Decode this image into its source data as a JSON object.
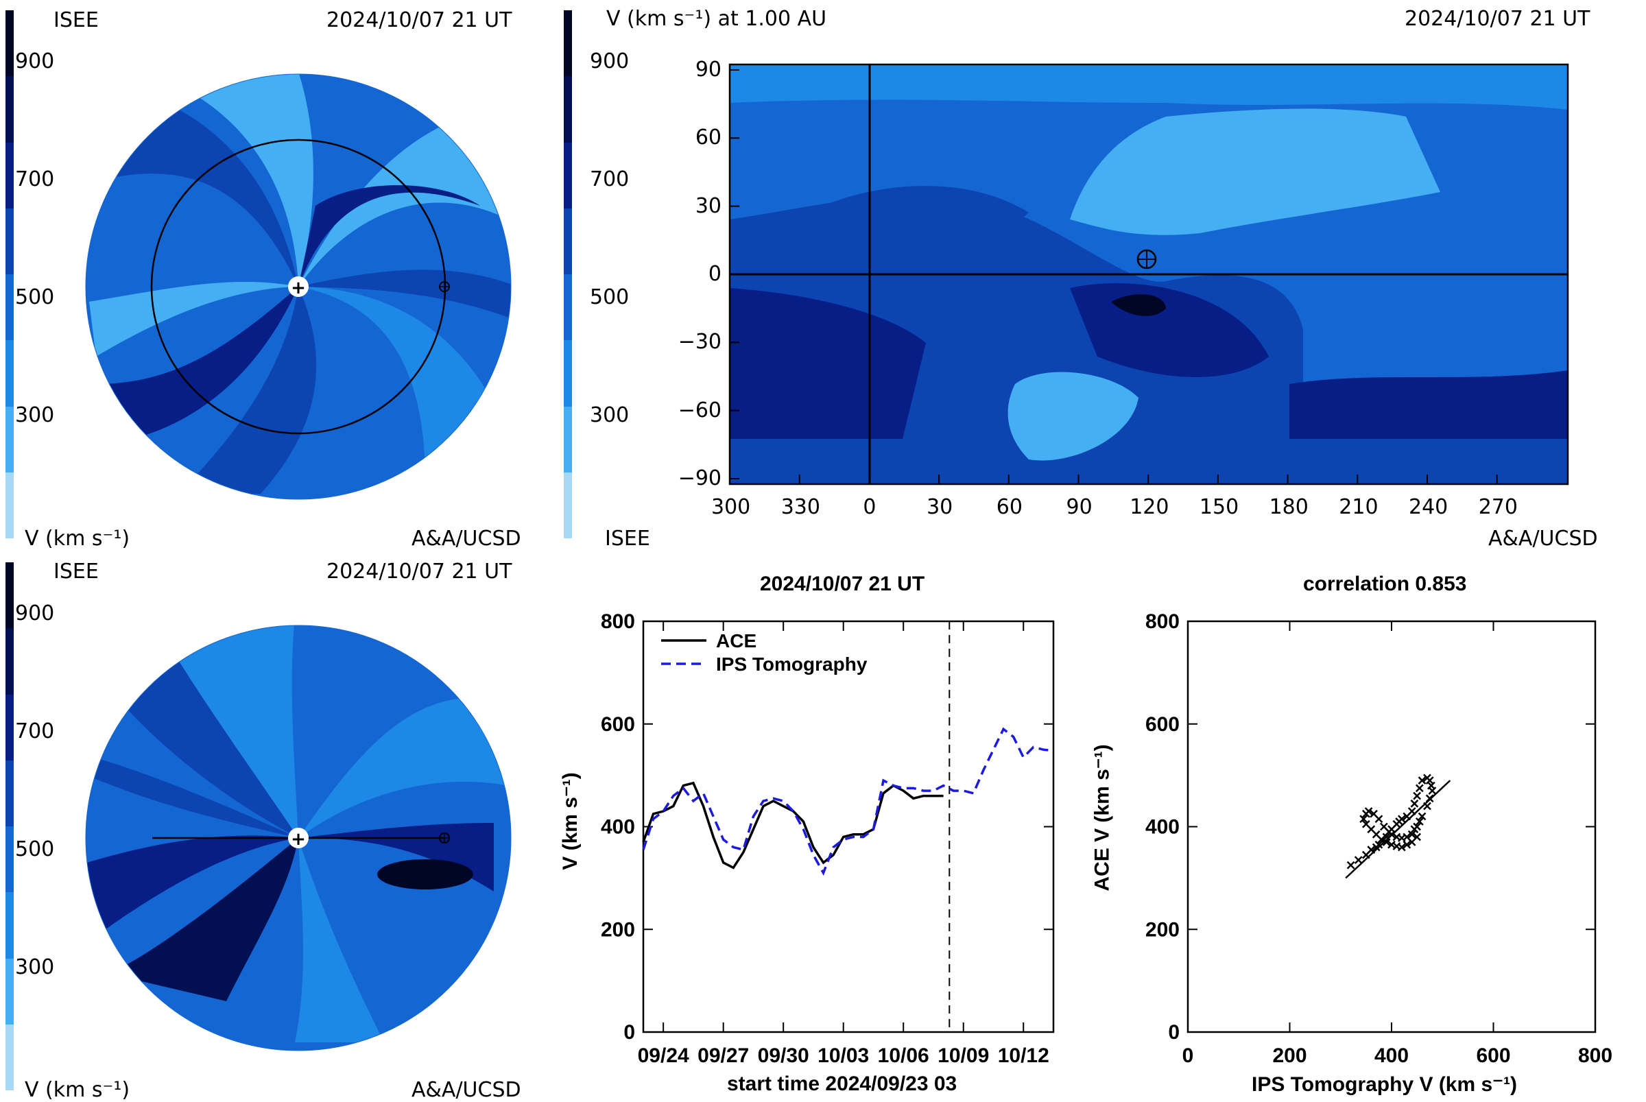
{
  "colorbar": {
    "ticks": [
      "900",
      "700",
      "500",
      "300"
    ],
    "bands": [
      "#a8d8f4",
      "#44aff2",
      "#1e88e6",
      "#1466d2",
      "#0c44b2",
      "#061e86",
      "#020f52",
      "#010626"
    ]
  },
  "panel_top_left": {
    "org": "ISEE",
    "time": "2024/10/07 21 UT",
    "units": "V (km s⁻¹)",
    "credit": "A&A/UCSD"
  },
  "panel_bottom_left": {
    "org": "ISEE",
    "time": "2024/10/07 21 UT",
    "units": "V (km s⁻¹)",
    "credit": "A&A/UCSD"
  },
  "panel_map": {
    "header": "V (km s⁻¹) at 1.00 AU",
    "time": "2024/10/07 21 UT",
    "org": "ISEE",
    "credit": "A&A/UCSD",
    "y_ticks": [
      "90",
      "60",
      "30",
      "0",
      "−30",
      "−60",
      "−90"
    ],
    "x_ticks": [
      "300",
      "330",
      "0",
      "30",
      "60",
      "90",
      "120",
      "150",
      "180",
      "210",
      "240",
      "270"
    ],
    "earth_symbol": "⊕"
  },
  "chart_data": [
    {
      "type": "line",
      "title": "2024/10/07 21 UT",
      "xlabel": "start time 2024/09/23 03",
      "ylabel": "V (km s⁻¹)",
      "x_tick_labels": [
        "09/24",
        "09/27",
        "09/30",
        "10/03",
        "10/06",
        "10/09",
        "10/12"
      ],
      "y_ticks": [
        "800",
        "600",
        "400",
        "200",
        "0"
      ],
      "ylim": [
        0,
        800
      ],
      "xlim": [
        0,
        20.5
      ],
      "vline_x": 15.3,
      "legend_position": "top-left",
      "series": [
        {
          "name": "ACE",
          "color": "#000000",
          "style": "solid",
          "x": [
            0,
            0.5,
            1,
            1.5,
            2,
            2.5,
            3,
            3.5,
            4,
            4.5,
            5,
            5.5,
            6,
            6.5,
            7,
            7.5,
            8,
            8.5,
            9,
            9.5,
            10,
            10.5,
            11,
            11.5,
            12,
            12.5,
            13,
            13.5,
            14,
            14.5,
            15
          ],
          "y": [
            370,
            425,
            430,
            440,
            480,
            485,
            440,
            380,
            330,
            320,
            350,
            395,
            440,
            450,
            440,
            430,
            410,
            360,
            330,
            345,
            380,
            385,
            385,
            395,
            465,
            480,
            470,
            455,
            460,
            460,
            460
          ]
        },
        {
          "name": "IPS Tomography",
          "color": "#1a1ae0",
          "style": "dashed",
          "x": [
            0,
            0.5,
            1,
            1.5,
            2,
            2.5,
            3,
            3.5,
            4,
            4.5,
            5,
            5.5,
            6,
            6.5,
            7,
            7.5,
            8,
            8.5,
            9,
            9.5,
            10,
            10.5,
            11,
            11.5,
            12,
            12.5,
            13,
            13.5,
            14,
            14.5,
            15,
            15.5,
            16,
            16.5,
            17,
            17.5,
            18,
            18.5,
            19,
            19.5,
            20,
            20.5
          ],
          "y": [
            355,
            415,
            430,
            460,
            475,
            450,
            465,
            420,
            375,
            360,
            355,
            420,
            450,
            455,
            450,
            430,
            395,
            345,
            310,
            360,
            375,
            380,
            380,
            395,
            490,
            480,
            475,
            475,
            470,
            470,
            480,
            470,
            470,
            465,
            510,
            550,
            590,
            575,
            535,
            555,
            550,
            548
          ]
        }
      ]
    },
    {
      "type": "scatter",
      "title": "correlation 0.853",
      "xlabel": "IPS Tomography V (km s⁻¹)",
      "ylabel": "ACE V (km s⁻¹)",
      "xlim": [
        0,
        800
      ],
      "ylim": [
        0,
        800
      ],
      "x_ticks": [
        "0",
        "200",
        "400",
        "600",
        "800"
      ],
      "y_ticks": [
        "800",
        "600",
        "400",
        "200",
        "0"
      ],
      "fit_line": {
        "x": [
          310,
          515
        ],
        "y": [
          300,
          490
        ]
      },
      "points": {
        "x": [
          320,
          335,
          350,
          360,
          370,
          375,
          380,
          390,
          395,
          400,
          410,
          415,
          420,
          430,
          440,
          445,
          450,
          455,
          460,
          470,
          475,
          478,
          480,
          475,
          470,
          460,
          455,
          450,
          445,
          440,
          430,
          420,
          410,
          400,
          395,
          385,
          375,
          365,
          355,
          350,
          345,
          350,
          360,
          370,
          380,
          390,
          400,
          410,
          420,
          430,
          440,
          450
        ],
        "y": [
          325,
          335,
          345,
          355,
          360,
          365,
          375,
          380,
          390,
          395,
          405,
          410,
          415,
          420,
          430,
          445,
          460,
          475,
          490,
          495,
          490,
          480,
          470,
          455,
          440,
          420,
          410,
          400,
          395,
          385,
          380,
          378,
          380,
          385,
          390,
          400,
          415,
          425,
          430,
          425,
          415,
          405,
          395,
          385,
          375,
          370,
          365,
          362,
          360,
          365,
          370,
          380
        ]
      }
    }
  ]
}
